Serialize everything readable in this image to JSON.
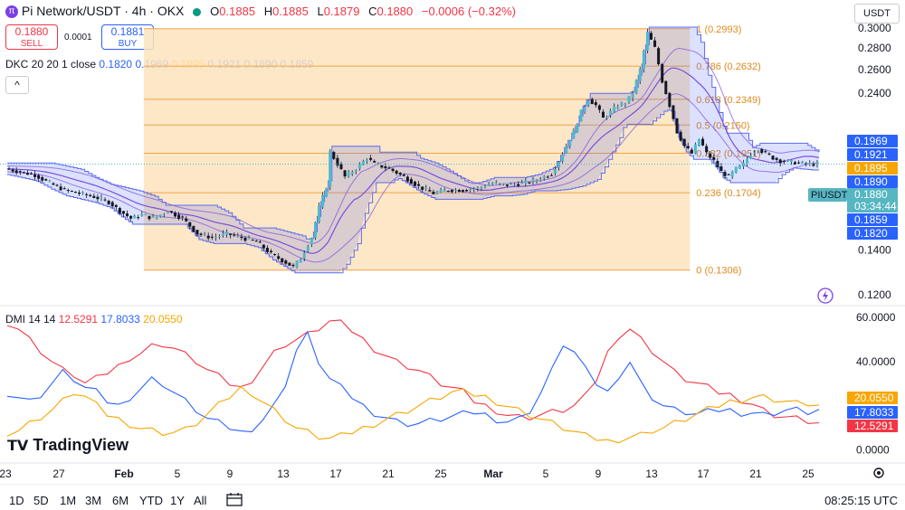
{
  "header": {
    "symbol": "Pi Network/USDT",
    "interval": "4h",
    "exchange": "OKX",
    "o_label": "O",
    "o": "0.1885",
    "h_label": "H",
    "h": "0.1885",
    "l_label": "L",
    "l": "0.1879",
    "c_label": "C",
    "c": "0.1880",
    "change": "−0.0006 (−0.32%)"
  },
  "trade": {
    "sell_price": "0.1880",
    "sell_label": "SELL",
    "spread": "0.0001",
    "buy_price": "0.1881",
    "buy_label": "BUY"
  },
  "currency_selector": "USDT",
  "indicators": {
    "dkc": {
      "label": "DKC 20 20 1 close",
      "values": [
        "0.1820",
        "0.1969",
        "0.1895",
        "0.1921",
        "0.1890",
        "0.1859"
      ],
      "colors": [
        "#2962ff",
        "#2962ff",
        "#f7a600",
        "#2962ff",
        "#2962ff",
        "#2962ff"
      ]
    },
    "dmi": {
      "label": "DMI 14 14",
      "values": [
        "12.5291",
        "17.8033",
        "20.0550"
      ],
      "colors": [
        "#f23645",
        "#2962ff",
        "#f7a600"
      ]
    }
  },
  "price_labels": [
    {
      "text": "0.1969",
      "bg": "#2962ff"
    },
    {
      "text": "0.1921",
      "bg": "#2962ff"
    },
    {
      "text": "0.1895",
      "bg": "#f7a600"
    },
    {
      "text": "0.1890",
      "bg": "#2962ff"
    },
    {
      "text": "0.1880",
      "bg": "#56b6c2"
    },
    {
      "text": "03:34:44",
      "bg": "#56b6c2"
    },
    {
      "text": "0.1859",
      "bg": "#2962ff"
    },
    {
      "text": "0.1820",
      "bg": "#2962ff"
    }
  ],
  "symbol_tag": "PIUSDT",
  "dmi_labels": [
    {
      "text": "20.0550",
      "bg": "#f7a600"
    },
    {
      "text": "17.8033",
      "bg": "#2962ff"
    },
    {
      "text": "12.5291",
      "bg": "#f23645"
    }
  ],
  "logo": "TradingView",
  "ranges": [
    "1D",
    "5D",
    "1M",
    "3M",
    "6M",
    "YTD",
    "1Y",
    "All"
  ],
  "clock": "08:25:15 UTC",
  "chart_data": [
    {
      "type": "candlestick",
      "title": "Pi Network/USDT · 4h · OKX",
      "x_ticks": [
        "23",
        "27",
        "Feb",
        "5",
        "9",
        "13",
        "17",
        "21",
        "25",
        "Mar",
        "5",
        "9",
        "13",
        "17",
        "21",
        "25"
      ],
      "y_ticks": [
        "0.3000",
        "0.2800",
        "0.2600",
        "0.2400",
        "0.1400",
        "0.1200"
      ],
      "y_tick_values": [
        0.3,
        0.28,
        0.26,
        0.24,
        0.14,
        0.12
      ],
      "ylim": [
        0.113,
        0.305
      ],
      "scale": "log",
      "x_index_range": [
        0,
        220
      ],
      "close_path": [
        [
          0,
          0.183
        ],
        [
          10,
          0.181
        ],
        [
          20,
          0.176
        ],
        [
          30,
          0.171
        ],
        [
          40,
          0.168
        ],
        [
          50,
          0.165
        ],
        [
          60,
          0.161
        ],
        [
          70,
          0.158
        ],
        [
          80,
          0.158
        ],
        [
          90,
          0.154
        ],
        [
          100,
          0.15
        ],
        [
          110,
          0.152
        ],
        [
          117,
          0.152
        ],
        [
          130,
          0.152
        ],
        [
          140,
          0.14
        ],
        [
          150,
          0.14
        ],
        [
          160,
          0.142
        ],
        [
          170,
          0.148
        ],
        [
          180,
          0.163
        ],
        [
          190,
          0.178
        ],
        [
          200,
          0.185
        ],
        [
          210,
          0.192
        ],
        [
          220,
          0.195
        ]
      ],
      "price_path": [
        [
          0,
          0.185
        ],
        [
          4,
          0.183
        ],
        [
          8,
          0.181
        ],
        [
          12,
          0.176
        ],
        [
          16,
          0.172
        ],
        [
          20,
          0.17
        ],
        [
          24,
          0.168
        ],
        [
          28,
          0.165
        ],
        [
          31,
          0.16
        ],
        [
          34,
          0.156
        ],
        [
          37,
          0.158
        ],
        [
          40,
          0.156
        ],
        [
          44,
          0.16
        ],
        [
          48,
          0.156
        ],
        [
          52,
          0.148
        ],
        [
          56,
          0.146
        ],
        [
          60,
          0.148
        ],
        [
          64,
          0.146
        ],
        [
          68,
          0.144
        ],
        [
          72,
          0.138
        ],
        [
          75,
          0.135
        ],
        [
          78,
          0.132
        ],
        [
          80,
          0.136
        ],
        [
          83,
          0.146
        ],
        [
          85,
          0.162
        ],
        [
          87,
          0.174
        ],
        [
          88,
          0.196
        ],
        [
          90,
          0.188
        ],
        [
          92,
          0.18
        ],
        [
          95,
          0.185
        ],
        [
          98,
          0.192
        ],
        [
          100,
          0.188
        ],
        [
          104,
          0.185
        ],
        [
          108,
          0.18
        ],
        [
          112,
          0.174
        ],
        [
          116,
          0.17
        ],
        [
          120,
          0.172
        ],
        [
          124,
          0.172
        ],
        [
          128,
          0.173
        ],
        [
          132,
          0.176
        ],
        [
          136,
          0.175
        ],
        [
          140,
          0.176
        ],
        [
          144,
          0.178
        ],
        [
          148,
          0.182
        ],
        [
          150,
          0.19
        ],
        [
          152,
          0.2
        ],
        [
          154,
          0.21
        ],
        [
          156,
          0.225
        ],
        [
          158,
          0.235
        ],
        [
          160,
          0.23
        ],
        [
          162,
          0.22
        ],
        [
          164,
          0.225
        ],
        [
          166,
          0.23
        ],
        [
          168,
          0.232
        ],
        [
          170,
          0.24
        ],
        [
          172,
          0.26
        ],
        [
          174,
          0.295
        ],
        [
          176,
          0.28
        ],
        [
          178,
          0.25
        ],
        [
          180,
          0.23
        ],
        [
          182,
          0.21
        ],
        [
          184,
          0.2
        ],
        [
          186,
          0.195
        ],
        [
          188,
          0.205
        ],
        [
          190,
          0.195
        ],
        [
          192,
          0.19
        ],
        [
          194,
          0.183
        ],
        [
          196,
          0.18
        ],
        [
          198,
          0.185
        ],
        [
          200,
          0.188
        ],
        [
          202,
          0.195
        ],
        [
          204,
          0.198
        ],
        [
          206,
          0.195
        ],
        [
          208,
          0.192
        ],
        [
          210,
          0.19
        ],
        [
          214,
          0.189
        ],
        [
          218,
          0.188
        ]
      ],
      "last_price": 0.188,
      "fibonacci": [
        {
          "label": "1 (0.2993)",
          "value": 0.2993
        },
        {
          "label": "0.786 (0.2632)",
          "value": 0.2632
        },
        {
          "label": "0.618 (0.2349)",
          "value": 0.2349
        },
        {
          "label": "0.5 (0.2150)",
          "value": 0.215
        },
        {
          "label": "0.382 (0.1951)",
          "value": 0.1951
        },
        {
          "label": "0.236 (0.1704)",
          "value": 0.1704
        },
        {
          "label": "0 (0.1306)",
          "value": 0.1306
        }
      ],
      "fib_x_range": [
        37,
        185
      ]
    },
    {
      "type": "line",
      "title": "DMI 14 14",
      "x_ticks": [
        "23",
        "27",
        "Feb",
        "5",
        "9",
        "13",
        "17",
        "21",
        "25",
        "Mar",
        "5",
        "9",
        "13",
        "17",
        "21",
        "25"
      ],
      "y_ticks": [
        "60.0000",
        "40.0000",
        "0.0000"
      ],
      "y_tick_values": [
        60,
        40,
        0
      ],
      "ylim": [
        -3,
        62
      ],
      "series": [
        {
          "color": "#f23645",
          "values": [
            58,
            55,
            50,
            45,
            40,
            36,
            34,
            30,
            32,
            35,
            38,
            42,
            44,
            47,
            48,
            46,
            43,
            40,
            36,
            33,
            30,
            28,
            32,
            38,
            44,
            48,
            50,
            52,
            55,
            58,
            57,
            54,
            50,
            46,
            43,
            40,
            38,
            36,
            33,
            30,
            28,
            26,
            22,
            20,
            18,
            16,
            15,
            15,
            16,
            17,
            18,
            20,
            24,
            32,
            44,
            52,
            55,
            50,
            45,
            40,
            35,
            32,
            30,
            28,
            26,
            25,
            23,
            21,
            18,
            16,
            15,
            14,
            13,
            12
          ]
        },
        {
          "color": "#2962ff",
          "values": [
            26,
            24,
            22,
            25,
            30,
            35,
            32,
            28,
            26,
            22,
            20,
            24,
            28,
            32,
            30,
            26,
            22,
            18,
            14,
            12,
            10,
            8,
            10,
            14,
            20,
            30,
            45,
            52,
            40,
            32,
            28,
            24,
            20,
            17,
            15,
            13,
            12,
            12,
            13,
            14,
            15,
            16,
            17,
            16,
            14,
            13,
            14,
            18,
            26,
            36,
            48,
            44,
            36,
            30,
            26,
            34,
            40,
            30,
            24,
            20,
            18,
            17,
            16,
            17,
            18,
            18,
            17,
            17,
            16,
            17,
            18,
            18,
            17,
            18
          ]
        },
        {
          "color": "#f7a600",
          "values": [
            8,
            9,
            12,
            15,
            18,
            22,
            26,
            24,
            20,
            16,
            14,
            12,
            10,
            9,
            8,
            8,
            9,
            12,
            16,
            20,
            24,
            28,
            26,
            22,
            18,
            14,
            10,
            8,
            6,
            5,
            6,
            8,
            10,
            12,
            14,
            16,
            18,
            20,
            22,
            24,
            26,
            26,
            25,
            24,
            22,
            20,
            18,
            16,
            14,
            12,
            10,
            8,
            6,
            5,
            4,
            5,
            6,
            7,
            9,
            10,
            12,
            14,
            16,
            18,
            20,
            22,
            23,
            24,
            24,
            23,
            22,
            21,
            21,
            20
          ]
        }
      ]
    }
  ]
}
